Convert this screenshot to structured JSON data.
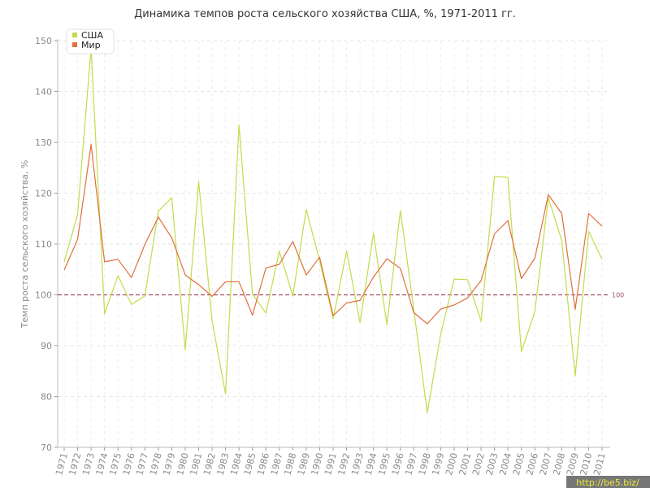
{
  "chart_data": {
    "type": "line",
    "title": "Динамика темпов роста сельского хозяйства США, %, 1971-2011 гг.",
    "ylabel": "Темп роста сельского хозяйства, %",
    "xlabel": "",
    "ylim": [
      70,
      150
    ],
    "yticks": [
      70,
      80,
      90,
      100,
      110,
      120,
      130,
      140,
      150
    ],
    "grid": true,
    "legend_position": "top-left",
    "x": [
      "1971",
      "1972",
      "1973",
      "1974",
      "1975",
      "1976",
      "1977",
      "1978",
      "1979",
      "1980",
      "1981",
      "1982",
      "1983",
      "1984",
      "1985",
      "1986",
      "1987",
      "1988",
      "1989",
      "1990",
      "1991",
      "1992",
      "1993",
      "1994",
      "1995",
      "1996",
      "1997",
      "1998",
      "1999",
      "2000",
      "2001",
      "2002",
      "2003",
      "2004",
      "2005",
      "2006",
      "2007",
      "2008",
      "2009",
      "2010",
      "2011"
    ],
    "series": [
      {
        "name": "США",
        "color": "#c2dc4a",
        "values": [
          106.5,
          115.8,
          148.5,
          96.3,
          103.8,
          98.1,
          99.8,
          116.5,
          119.1,
          89.2,
          122.3,
          94.8,
          80.5,
          133.4,
          100.2,
          96.4,
          108.6,
          99.8,
          116.8,
          106.7,
          95.3,
          108.6,
          94.5,
          112.1,
          94.1,
          116.6,
          97.1,
          76.8,
          92.3,
          103.1,
          103.0,
          94.8,
          123.3,
          123.1,
          88.8,
          96.7,
          119.1,
          110.7,
          84.0,
          112.5,
          107.0
        ]
      },
      {
        "name": "Мир",
        "color": "#e0703c",
        "values": [
          104.9,
          110.9,
          129.6,
          106.5,
          107.0,
          103.4,
          109.9,
          115.3,
          111.2,
          103.9,
          102.0,
          99.7,
          102.6,
          102.6,
          96.0,
          105.3,
          106.0,
          110.5,
          103.9,
          107.4,
          95.9,
          98.4,
          98.9,
          103.5,
          107.1,
          105.2,
          96.5,
          94.3,
          97.2,
          98.0,
          99.4,
          102.8,
          112.0,
          114.6,
          103.2,
          107.2,
          119.7,
          116.0,
          97.1,
          116.0,
          113.5
        ]
      }
    ],
    "reference_line": {
      "value": 100,
      "label": "100",
      "color": "#a05060"
    }
  },
  "watermark": "http://be5.biz/"
}
